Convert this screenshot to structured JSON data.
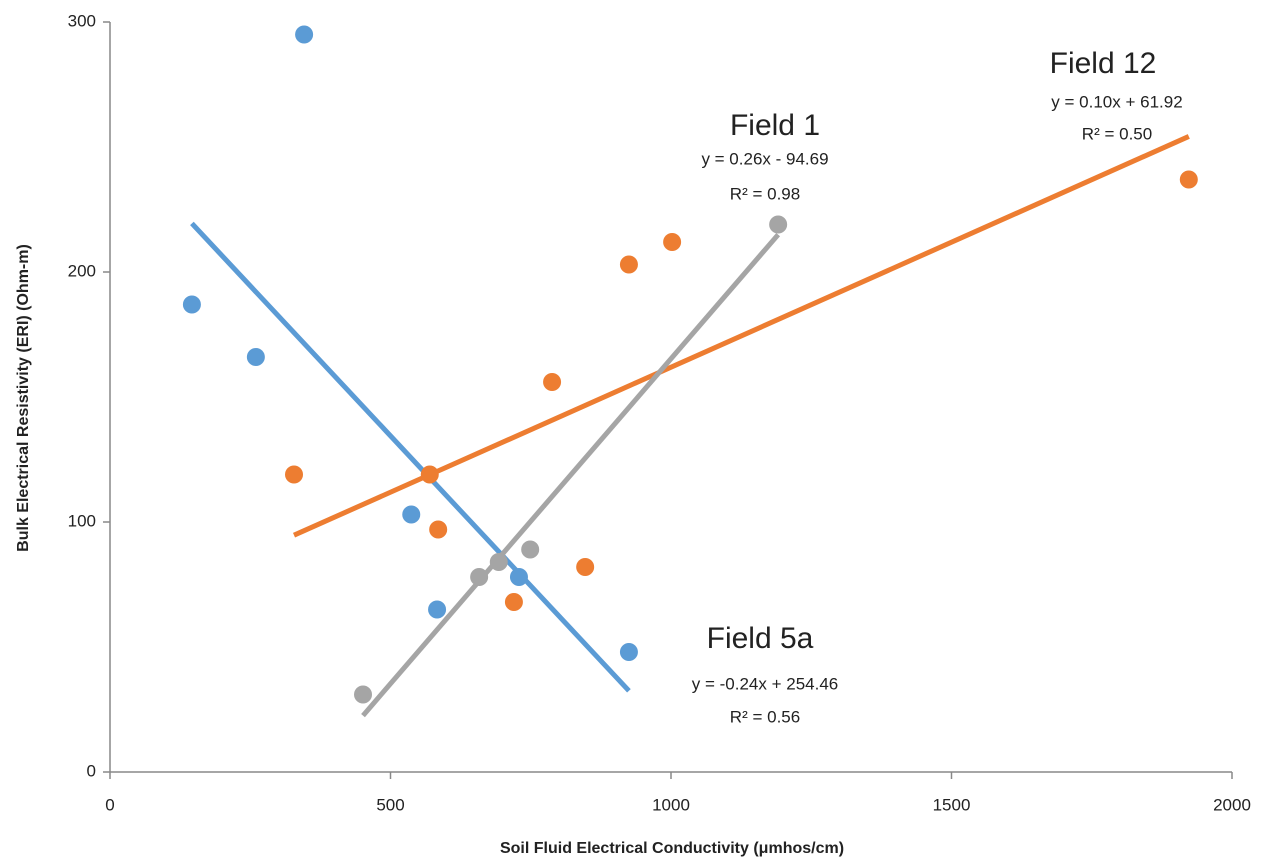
{
  "chart_data": {
    "type": "scatter",
    "xlabel": "Soil Fluid Electrical Conductivity (μmhos/cm)",
    "ylabel": "Bulk Electrical Resistivity (ERI) (Ohm-m)",
    "xlim": [
      0,
      2000
    ],
    "xticks": [
      0,
      500,
      1000,
      1500,
      2000
    ],
    "ylim": [
      0,
      300
    ],
    "yticks": [
      0,
      100,
      200,
      300
    ],
    "grid": false,
    "series": [
      {
        "name": "Field 5a",
        "color": "#5b9bd5",
        "x": [
          146,
          260,
          346,
          537,
          583,
          729,
          925
        ],
        "values": [
          187,
          166,
          295,
          103,
          65,
          78,
          48
        ],
        "trendline": {
          "equation": "y = -0.24x + 254.46",
          "r2": "R² = 0.56",
          "slope": -0.24,
          "intercept": 254.46
        }
      },
      {
        "name": "Field 12",
        "color": "#ed7d31",
        "x": [
          328,
          570,
          585,
          720,
          788,
          847,
          925,
          1002,
          1923
        ],
        "values": [
          119,
          119,
          97,
          68,
          156,
          82,
          203,
          212,
          237
        ],
        "trendline": {
          "equation": "y = 0.10x + 61.92",
          "r2": "R² = 0.50",
          "slope": 0.1,
          "intercept": 61.92
        }
      },
      {
        "name": "Field 1",
        "color": "#a5a5a5",
        "x": [
          451,
          658,
          693,
          749,
          1191
        ],
        "values": [
          31,
          78,
          84,
          89,
          219
        ],
        "trendline": {
          "equation": "y = 0.26x - 94.69",
          "r2": "R² = 0.98",
          "slope": 0.26,
          "intercept": -94.69
        }
      }
    ]
  }
}
